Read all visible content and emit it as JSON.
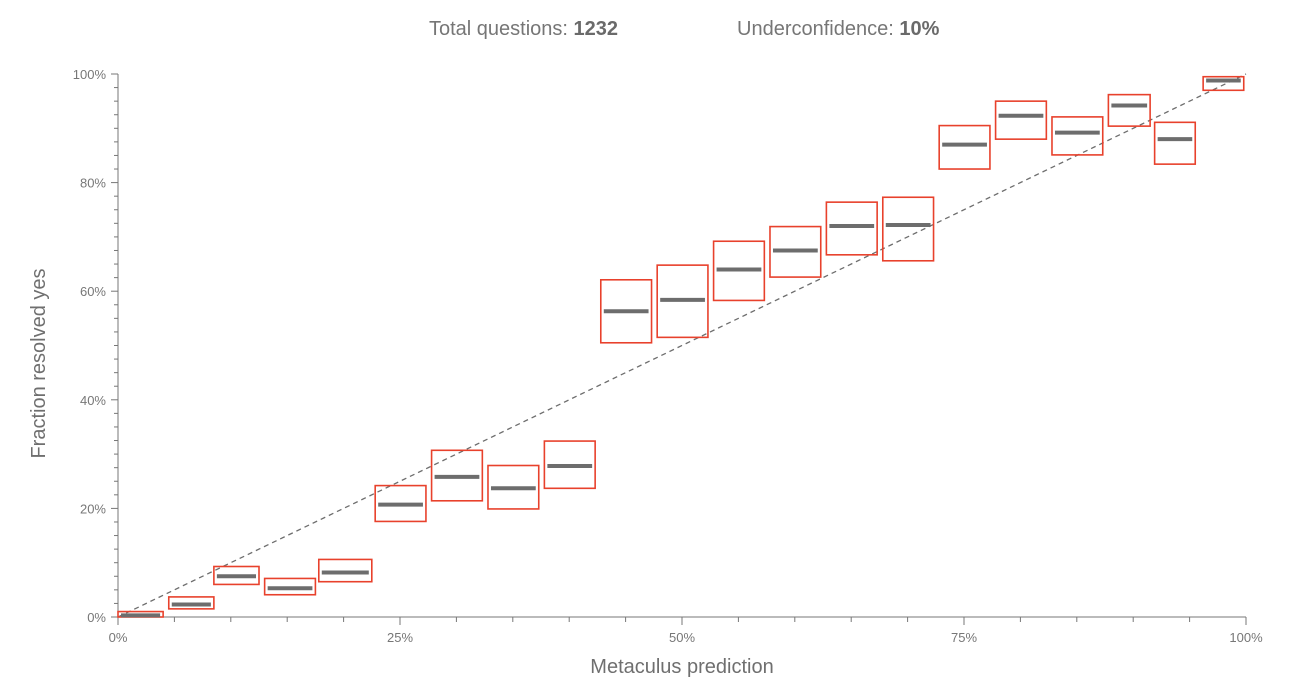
{
  "header": {
    "total_label": "Total questions:",
    "total_value": "1232",
    "under_label": "Underconfidence:",
    "under_value": "10%"
  },
  "colors": {
    "box_stroke": "#e8412c",
    "median": "#6d6d6d",
    "diagonal": "#6d6d6d",
    "axis": "#777777"
  },
  "chart_data": {
    "type": "box",
    "title": "",
    "xlabel": "Metaculus prediction",
    "ylabel": "Fraction resolved yes",
    "xlim": [
      0,
      100
    ],
    "ylim": [
      0,
      100
    ],
    "x_ticks": [
      "0%",
      "25%",
      "50%",
      "75%",
      "100%"
    ],
    "y_ticks": [
      "0%",
      "20%",
      "40%",
      "60%",
      "80%",
      "100%"
    ],
    "diagonal": true,
    "bins": [
      {
        "x0": 0,
        "x1": 4,
        "low": 0,
        "high": 1,
        "median": 0.3
      },
      {
        "x0": 4.5,
        "x1": 8.5,
        "low": 1.5,
        "high": 3.7,
        "median": 2.3
      },
      {
        "x0": 8.5,
        "x1": 12.5,
        "low": 6,
        "high": 9.3,
        "median": 7.5
      },
      {
        "x0": 13,
        "x1": 17.5,
        "low": 4.1,
        "high": 7.1,
        "median": 5.3
      },
      {
        "x0": 17.8,
        "x1": 22.5,
        "low": 6.5,
        "high": 10.6,
        "median": 8.2
      },
      {
        "x0": 22.8,
        "x1": 27.3,
        "low": 17.6,
        "high": 24.2,
        "median": 20.7
      },
      {
        "x0": 27.8,
        "x1": 32.3,
        "low": 21.4,
        "high": 30.7,
        "median": 25.8
      },
      {
        "x0": 32.8,
        "x1": 37.3,
        "low": 19.9,
        "high": 27.9,
        "median": 23.7
      },
      {
        "x0": 37.8,
        "x1": 42.3,
        "low": 23.7,
        "high": 32.4,
        "median": 27.8
      },
      {
        "x0": 42.8,
        "x1": 47.3,
        "low": 50.5,
        "high": 62.1,
        "median": 56.3
      },
      {
        "x0": 47.8,
        "x1": 52.3,
        "low": 51.5,
        "high": 64.8,
        "median": 58.4
      },
      {
        "x0": 52.8,
        "x1": 57.3,
        "low": 58.3,
        "high": 69.2,
        "median": 64
      },
      {
        "x0": 57.8,
        "x1": 62.3,
        "low": 62.6,
        "high": 71.9,
        "median": 67.5
      },
      {
        "x0": 62.8,
        "x1": 67.3,
        "low": 66.7,
        "high": 76.4,
        "median": 72
      },
      {
        "x0": 67.8,
        "x1": 72.3,
        "low": 65.6,
        "high": 77.3,
        "median": 72.2
      },
      {
        "x0": 72.8,
        "x1": 77.3,
        "low": 82.5,
        "high": 90.5,
        "median": 87
      },
      {
        "x0": 77.8,
        "x1": 82.3,
        "low": 88,
        "high": 95,
        "median": 92.3
      },
      {
        "x0": 82.8,
        "x1": 87.3,
        "low": 85.1,
        "high": 92.1,
        "median": 89.2
      },
      {
        "x0": 87.8,
        "x1": 91.5,
        "low": 90.4,
        "high": 96.2,
        "median": 94.2
      },
      {
        "x0": 91.9,
        "x1": 95.5,
        "low": 83.4,
        "high": 91.1,
        "median": 88
      },
      {
        "x0": 96.2,
        "x1": 99.8,
        "low": 97,
        "high": 99.5,
        "median": 98.8
      }
    ]
  }
}
